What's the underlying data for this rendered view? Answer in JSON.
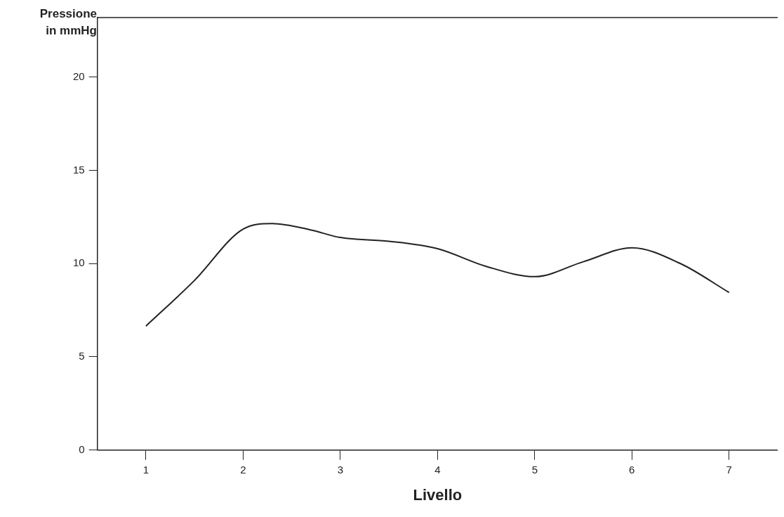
{
  "chart_data": {
    "type": "line",
    "ylabel": "Pressione in mmHg",
    "xlabel": "Livello",
    "xlim": [
      0.5,
      7.5
    ],
    "xticks": [
      1,
      2,
      3,
      4,
      5,
      6,
      7
    ],
    "ylim": [
      0,
      23.2
    ],
    "yticks": [
      0,
      5,
      10,
      15,
      20
    ],
    "grid": false,
    "legend": false,
    "marker": "none",
    "line_style": "solid",
    "series": [
      {
        "color": "#222222",
        "x": [
          1,
          1.5,
          2,
          2.3,
          2.7,
          3,
          3.5,
          4,
          4.5,
          5,
          5.5,
          6,
          6.5,
          7
        ],
        "values": [
          6.65,
          9.1,
          11.85,
          12.15,
          11.8,
          11.4,
          11.2,
          10.8,
          9.85,
          9.3,
          10.1,
          10.85,
          10.0,
          8.45
        ]
      }
    ]
  }
}
